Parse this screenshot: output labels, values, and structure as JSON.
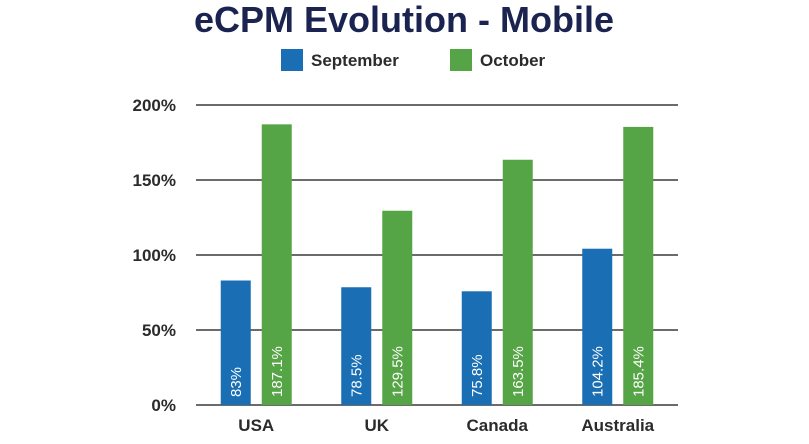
{
  "chart_data": {
    "type": "bar",
    "title": "eCPM Evolution - Mobile",
    "categories": [
      "USA",
      "UK",
      "Canada",
      "Australia"
    ],
    "series": [
      {
        "name": "September",
        "color": "#1a6fb4",
        "values": [
          83,
          78.5,
          75.8,
          104.2
        ],
        "labels": [
          "83%",
          "78.5%",
          "75.8%",
          "104.2%"
        ]
      },
      {
        "name": "October",
        "color": "#55a546",
        "values": [
          187.1,
          129.5,
          163.5,
          185.4
        ],
        "labels": [
          "187.1%",
          "129.5%",
          "163.5%",
          "185.4%"
        ]
      }
    ],
    "yticks": [
      "0%",
      "50%",
      "100%",
      "150%",
      "200%"
    ],
    "ylim": [
      0,
      200
    ],
    "grid": true,
    "legend_position": "top"
  }
}
